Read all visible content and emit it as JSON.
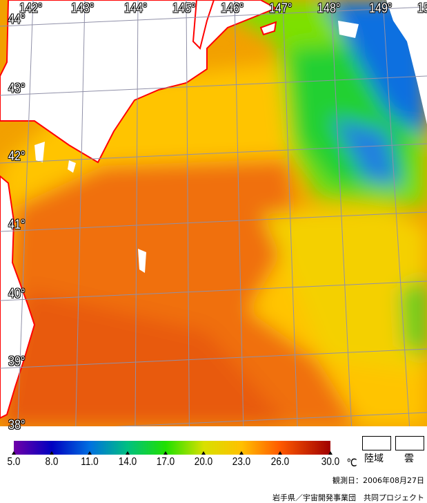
{
  "map": {
    "longitude_labels": [
      "142°",
      "143°",
      "144°",
      "145°",
      "146°",
      "147°",
      "148°",
      "149°",
      "15"
    ],
    "latitude_labels": [
      "44°",
      "43°",
      "42°",
      "41°",
      "40°",
      "39°",
      "38°"
    ],
    "colors": {
      "land_outline": "#ff0000",
      "grid": "#9090a0",
      "land": "#ffffff",
      "cloud": "#ffffff"
    }
  },
  "colorbar": {
    "ticks": [
      "5.0",
      "8.0",
      "11.0",
      "14.0",
      "17.0",
      "20.0",
      "23.0",
      "26.0",
      "30.0"
    ],
    "tick_values": [
      5,
      8,
      11,
      14,
      17,
      20,
      23,
      26,
      30
    ],
    "unit": "℃",
    "colors": [
      "#7000a8",
      "#0000c0",
      "#0070e0",
      "#00c080",
      "#20e000",
      "#d8e000",
      "#ffc000",
      "#ff5a00",
      "#a00000"
    ]
  },
  "legend": {
    "land_label": "陸域",
    "cloud_label": "雲"
  },
  "observation_date": "観測日：2006年08月27日",
  "credit": "岩手県／宇宙開発事業団　共同プロジェクト"
}
